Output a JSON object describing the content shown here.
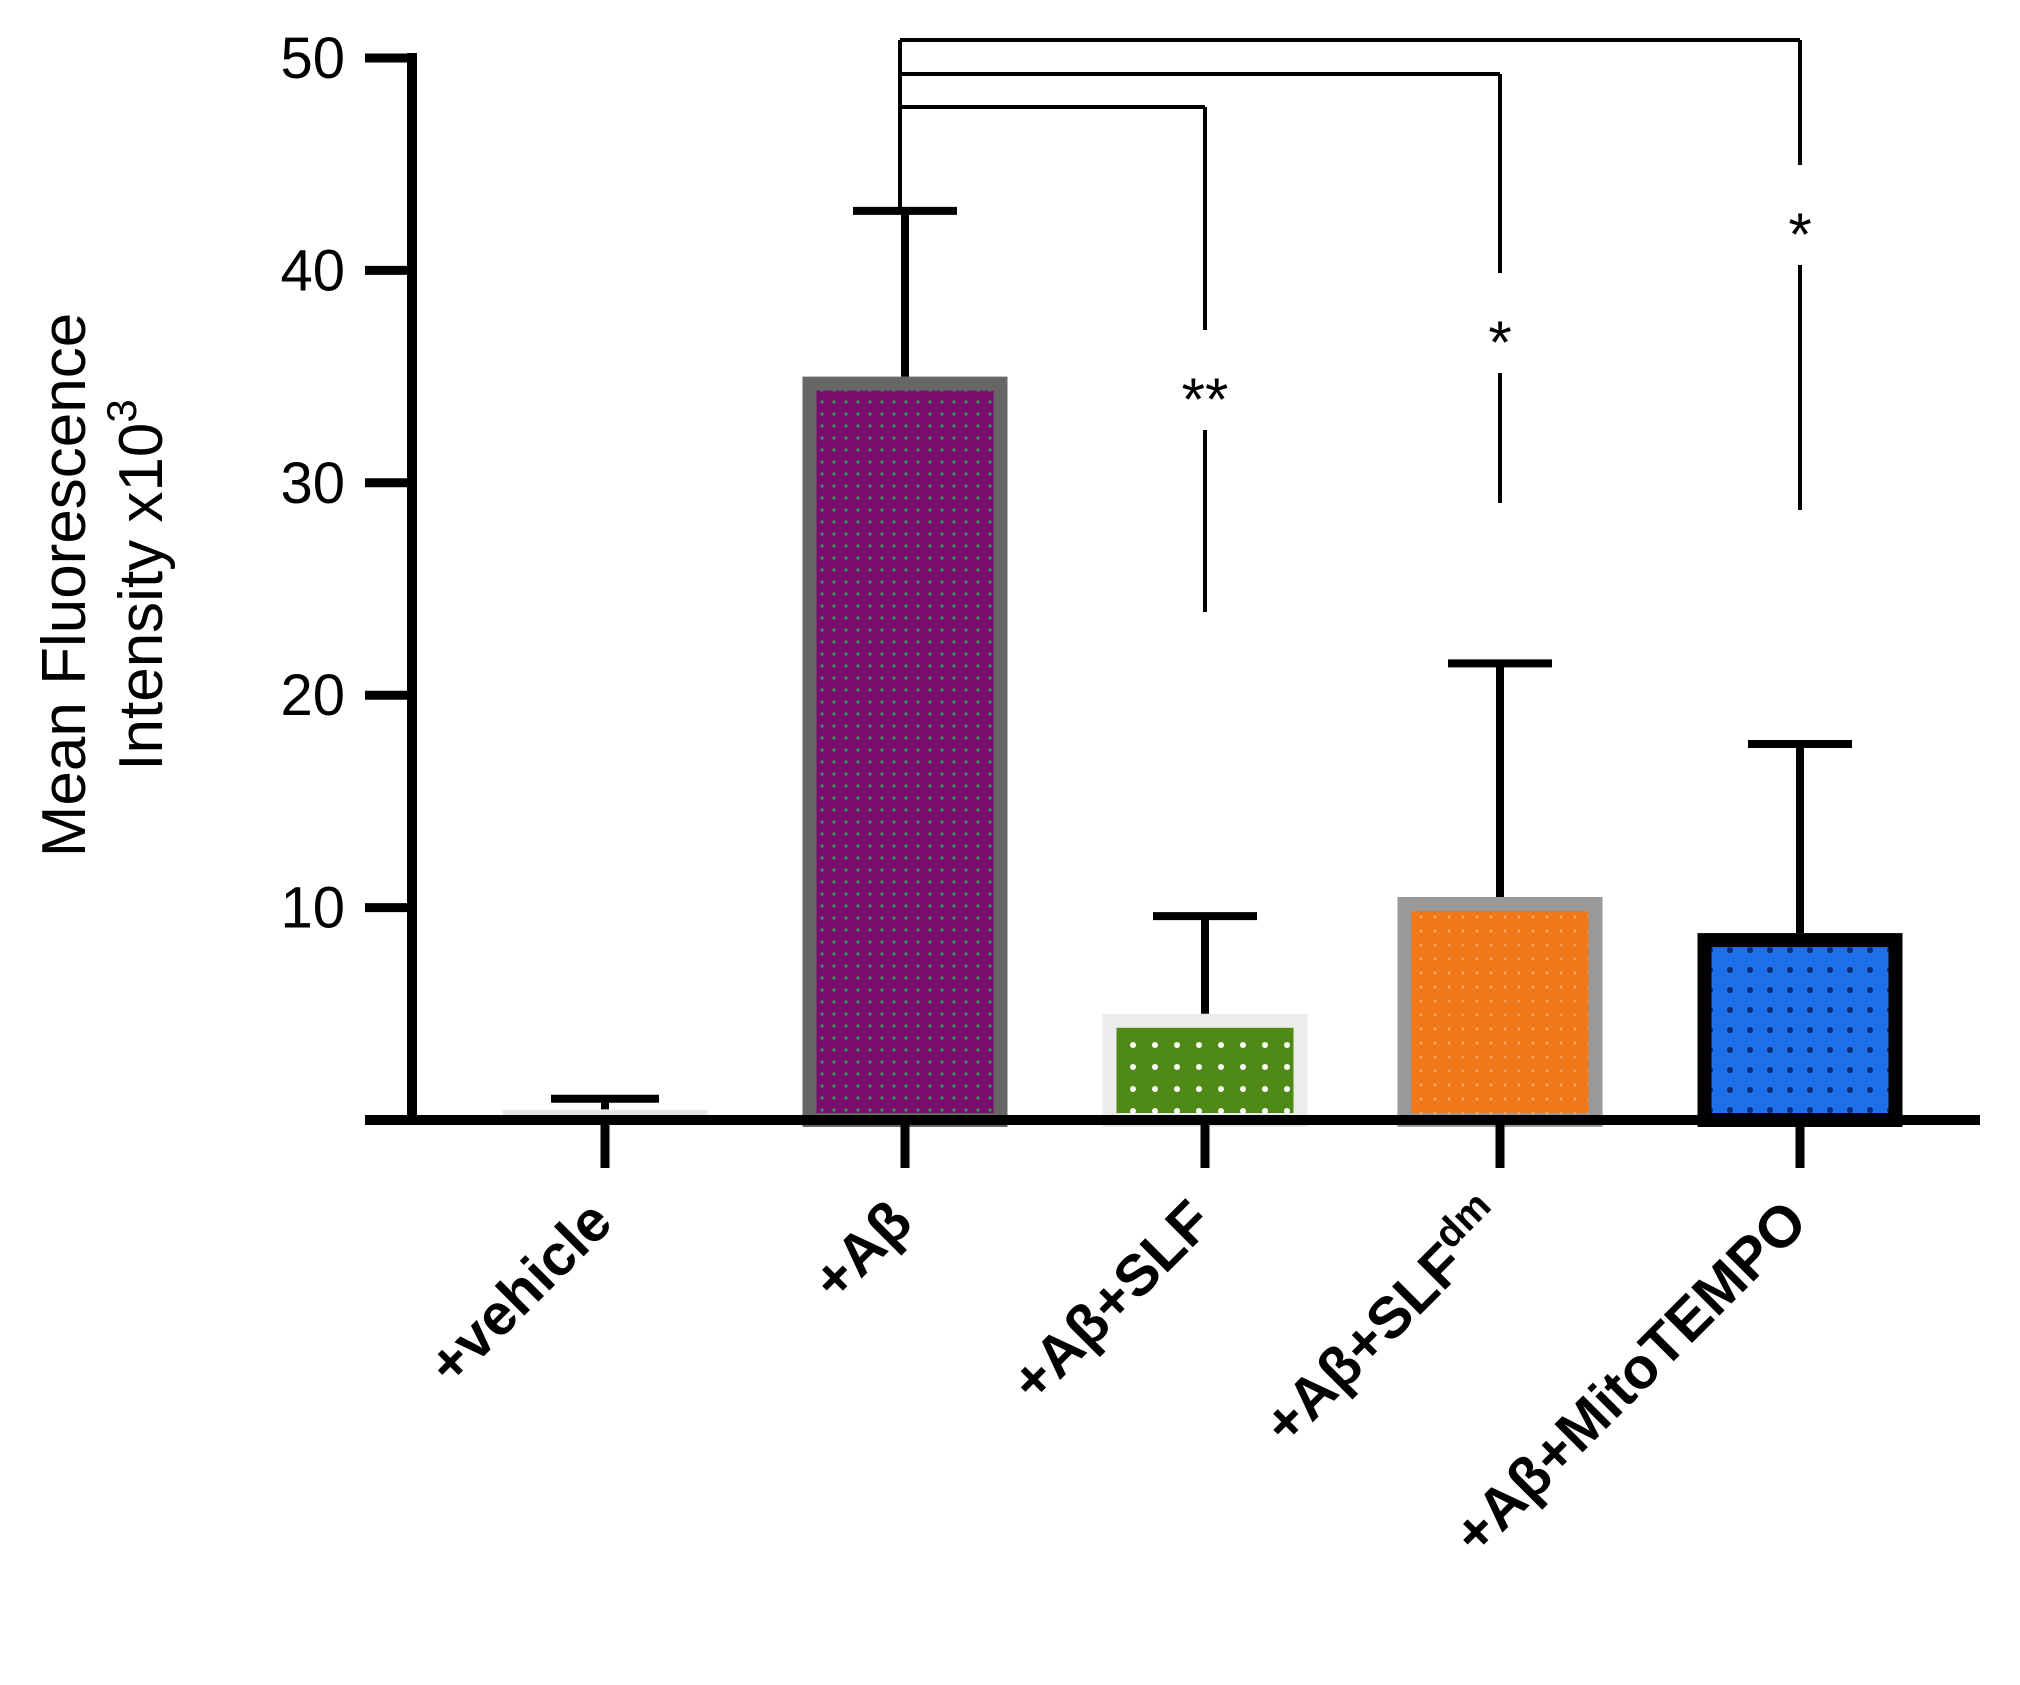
{
  "chart_data": {
    "type": "bar",
    "title": "",
    "xlabel": "",
    "ylabel_line1": "Mean Fluorescence",
    "ylabel_line2": "Intensity x10",
    "ylabel_exponent": "3",
    "ylim": [
      0,
      50
    ],
    "yticks": [
      10,
      20,
      30,
      40,
      50
    ],
    "categories": [
      {
        "prefix": "+vehicle",
        "sup": ""
      },
      {
        "prefix": "+Aβ",
        "sup": ""
      },
      {
        "prefix": "+Aβ+SLF",
        "sup": ""
      },
      {
        "prefix": "+Aβ+SLF",
        "sup": "dm"
      },
      {
        "prefix": "+Aβ+MitoTEMPO",
        "sup": ""
      }
    ],
    "values": [
      0.5,
      35,
      5,
      10.5,
      8.8
    ],
    "error": [
      0.5,
      7.8,
      4.6,
      11,
      8.9
    ],
    "bar_fill": [
      "#e6e6e6",
      "#7a0e6e",
      "#4f8a16",
      "#f07818",
      "#1f6fe8"
    ],
    "bar_edge": [
      "#e6e6e6",
      "#666666",
      "#ececec",
      "#9a9a9a",
      "#000000"
    ],
    "comparisons": [
      {
        "from": 1,
        "to": 2,
        "label": "**",
        "y": 48
      },
      {
        "from": 1,
        "to": 3,
        "label": "*",
        "y": 49.5
      },
      {
        "from": 1,
        "to": 4,
        "label": "*",
        "y": 51
      }
    ]
  }
}
